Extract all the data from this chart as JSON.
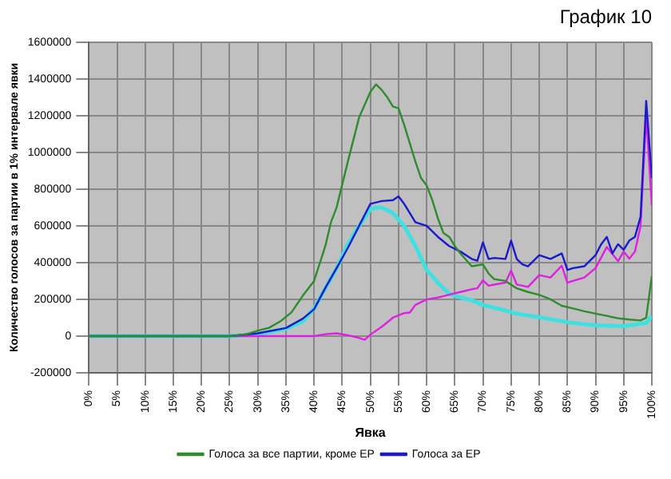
{
  "chart_data": {
    "type": "line",
    "title": "График 10",
    "xlabel": "Явка",
    "ylabel": "Количество голосов за партии в 1% интервале явки",
    "xlim": [
      0,
      100
    ],
    "xticks": [
      {
        "value": 0,
        "label": "0%"
      },
      {
        "value": 5,
        "label": "5%"
      },
      {
        "value": 10,
        "label": "10%"
      },
      {
        "value": 15,
        "label": "15%"
      },
      {
        "value": 20,
        "label": "20%"
      },
      {
        "value": 25,
        "label": "25%"
      },
      {
        "value": 30,
        "label": "30%"
      },
      {
        "value": 35,
        "label": "35%"
      },
      {
        "value": 40,
        "label": "40%"
      },
      {
        "value": 45,
        "label": "45%"
      },
      {
        "value": 50,
        "label": "50%"
      },
      {
        "value": 55,
        "label": "55%"
      },
      {
        "value": 60,
        "label": "60%"
      },
      {
        "value": 65,
        "label": "65%"
      },
      {
        "value": 70,
        "label": "70%"
      },
      {
        "value": 75,
        "label": "75%"
      },
      {
        "value": 80,
        "label": "80%"
      },
      {
        "value": 85,
        "label": "85%"
      },
      {
        "value": 90,
        "label": "90%"
      },
      {
        "value": 95,
        "label": "95%"
      },
      {
        "value": 100,
        "label": "100%"
      }
    ],
    "ylim": [
      -200000,
      1600000
    ],
    "yticks": [
      -200000,
      0,
      200000,
      400000,
      600000,
      800000,
      1000000,
      1200000,
      1400000,
      1600000
    ],
    "grid": true,
    "legend": "bottom",
    "marker": "none",
    "line_style": "solid",
    "series": [
      {
        "name": "Голоса за все партии, кроме ЕР",
        "color": "#2e8b2e",
        "x": [
          0,
          25,
          28,
          30,
          32,
          34,
          36,
          38,
          40,
          42,
          43,
          44,
          46,
          48,
          50,
          51,
          52,
          53,
          54,
          55,
          56,
          57,
          58,
          59,
          60,
          61,
          62,
          63,
          64,
          65,
          66,
          68,
          70,
          71,
          72,
          74,
          76,
          78,
          80,
          82,
          84,
          86,
          88,
          90,
          92,
          94,
          96,
          98,
          99,
          100
        ],
        "values": [
          0,
          0,
          10000,
          30000,
          45000,
          80000,
          130000,
          220000,
          300000,
          490000,
          620000,
          700000,
          950000,
          1190000,
          1330000,
          1370000,
          1340000,
          1300000,
          1250000,
          1240000,
          1150000,
          1050000,
          950000,
          860000,
          820000,
          740000,
          640000,
          560000,
          540000,
          490000,
          450000,
          380000,
          390000,
          340000,
          310000,
          300000,
          260000,
          240000,
          224000,
          200000,
          165000,
          150000,
          135000,
          122000,
          110000,
          97000,
          90000,
          85000,
          100000,
          327000
        ]
      },
      {
        "name": "Голоса за ЕР",
        "color": "#1a1acc",
        "x": [
          0,
          25,
          30,
          35,
          38,
          40,
          42,
          44,
          46,
          48,
          50,
          52,
          54,
          55,
          56,
          57,
          58,
          59,
          60,
          62,
          64,
          66,
          68,
          69,
          70,
          71,
          72,
          74,
          75,
          76,
          77,
          78,
          80,
          82,
          84,
          85,
          86,
          88,
          90,
          91,
          92,
          93,
          94,
          95,
          96,
          97,
          98,
          99,
          100
        ],
        "values": [
          0,
          0,
          15000,
          44000,
          95000,
          146000,
          262000,
          370000,
          480000,
          600000,
          720000,
          735000,
          740000,
          760000,
          720000,
          670000,
          620000,
          610000,
          600000,
          540000,
          490000,
          460000,
          420000,
          410000,
          510000,
          420000,
          425000,
          420000,
          520000,
          420000,
          390000,
          380000,
          440000,
          420000,
          450000,
          360000,
          370000,
          380000,
          440000,
          500000,
          540000,
          450000,
          500000,
          470000,
          520000,
          540000,
          650000,
          1280000,
          860000
        ]
      },
      {
        "color": "#e020e0",
        "x": [
          0,
          40,
          42,
          44,
          46,
          48,
          49,
          50,
          52,
          54,
          56,
          57,
          58,
          60,
          62,
          64,
          66,
          68,
          69,
          70,
          71,
          72,
          74,
          75,
          76,
          78,
          80,
          82,
          84,
          85,
          86,
          88,
          90,
          92,
          94,
          95,
          96,
          97,
          98,
          99,
          100
        ],
        "values": [
          0,
          0,
          10000,
          15000,
          5000,
          -10000,
          -20000,
          8000,
          50000,
          100000,
          125000,
          128000,
          170000,
          199000,
          210000,
          225000,
          240000,
          255000,
          260000,
          304000,
          274000,
          280000,
          291000,
          357000,
          281000,
          268000,
          332000,
          319000,
          383000,
          291000,
          300000,
          319000,
          370000,
          485000,
          408000,
          460000,
          421000,
          460000,
          600000,
          1200000,
          710000
        ]
      },
      {
        "color": "#40e0e0",
        "x": [
          0,
          25,
          30,
          35,
          38,
          40,
          42,
          44,
          46,
          48,
          50,
          51,
          52,
          54,
          56,
          58,
          60,
          62,
          64,
          66,
          68,
          70,
          72,
          76,
          81,
          86,
          90,
          95,
          99,
          100
        ],
        "values": [
          0,
          0,
          10000,
          40000,
          80000,
          150000,
          260000,
          370000,
          500000,
          600000,
          690000,
          700000,
          700000,
          670000,
          600000,
          490000,
          360000,
          290000,
          230000,
          210000,
          195000,
          170000,
          155000,
          122000,
          97000,
          71000,
          59000,
          54000,
          71000,
          110000
        ]
      }
    ]
  }
}
